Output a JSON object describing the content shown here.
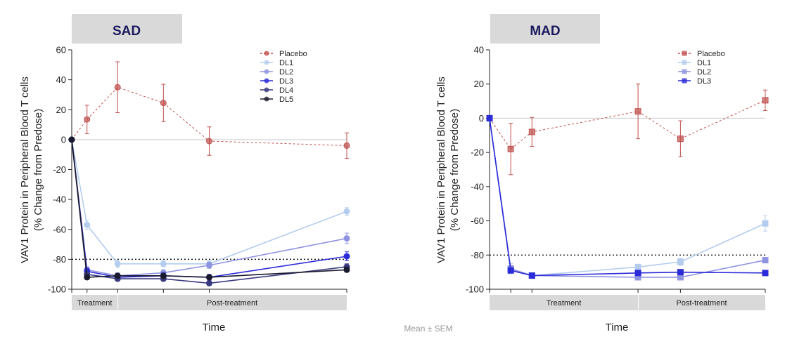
{
  "chart_data": [
    {
      "panel": "SAD",
      "type": "line",
      "xlabel": "Time",
      "ylabel": "VAV1 Protein in Peripheral Blood T cells",
      "ylabel2": "(% Change from Predose)",
      "ylim": [
        -100,
        60
      ],
      "yticks": [
        -100,
        -80,
        -60,
        -40,
        -20,
        0,
        20,
        40,
        60
      ],
      "x": [
        0,
        1,
        3,
        6,
        9,
        18
      ],
      "xlim": [
        0,
        18
      ],
      "reference_line": -80,
      "periods": [
        {
          "label": "Treatment",
          "from": 0,
          "to": 3
        },
        {
          "label": "Post-treatment",
          "from": 3,
          "to": 18
        }
      ],
      "marker": "circle",
      "legend": [
        "Placebo",
        "DL1",
        "DL2",
        "DL3",
        "DL4",
        "DL5"
      ],
      "series": [
        {
          "name": "Placebo",
          "color": "#c0504d",
          "dashed": true,
          "values": [
            0,
            13.5,
            35,
            24.5,
            -1,
            -4
          ],
          "err": [
            0,
            9.5,
            17,
            12.5,
            9.5,
            8.5
          ]
        },
        {
          "name": "DL1",
          "color": "#b4cdef",
          "dashed": false,
          "values": [
            0,
            -57,
            -83,
            -83,
            -83,
            -48
          ],
          "err": [
            0,
            3,
            2.5,
            2,
            2,
            2.5
          ]
        },
        {
          "name": "DL2",
          "color": "#8f94e0",
          "dashed": false,
          "values": [
            0,
            -87,
            -91,
            -89,
            -84,
            -66
          ],
          "err": [
            0,
            2,
            2,
            2,
            2,
            3.5
          ]
        },
        {
          "name": "DL3",
          "color": "#2b2bd8",
          "dashed": false,
          "values": [
            0,
            -88,
            -92,
            -91,
            -92,
            -78
          ],
          "err": [
            0,
            2,
            2,
            2,
            2,
            3
          ]
        },
        {
          "name": "DL4",
          "color": "#3a3a80",
          "dashed": false,
          "values": [
            0,
            -90,
            -93,
            -93,
            -96,
            -85
          ],
          "err": [
            0,
            1.5,
            1.5,
            1.5,
            1.5,
            2
          ]
        },
        {
          "name": "DL5",
          "color": "#1a1a2e",
          "dashed": false,
          "values": [
            0,
            -92,
            -91,
            -91,
            -92,
            -87
          ],
          "err": [
            0,
            1.5,
            1.5,
            1.5,
            1.5,
            1.5
          ]
        }
      ]
    },
    {
      "panel": "MAD",
      "type": "line",
      "xlabel": "Time",
      "ylabel": "VAV1 Protein in Peripheral Blood T cells",
      "ylabel2": "(% Change from Predose)",
      "ylim": [
        -100,
        40
      ],
      "yticks": [
        -100,
        -80,
        -60,
        -40,
        -20,
        0,
        20,
        40
      ],
      "x": [
        0,
        1,
        2,
        7,
        9,
        13
      ],
      "xlim": [
        0,
        13
      ],
      "reference_line": -80,
      "periods": [
        {
          "label": "Treatment",
          "from": 0,
          "to": 7
        },
        {
          "label": "Post-treatment",
          "from": 7,
          "to": 13
        }
      ],
      "marker": "square",
      "legend": [
        "Placebo",
        "DL1",
        "DL2",
        "DL3"
      ],
      "series": [
        {
          "name": "Placebo",
          "color": "#c0504d",
          "dashed": true,
          "values": [
            0,
            -18,
            -8,
            4,
            -12,
            10.5
          ],
          "err": [
            0,
            15,
            8.5,
            16,
            10.5,
            6
          ]
        },
        {
          "name": "DL1",
          "color": "#b4cdef",
          "dashed": false,
          "values": [
            0,
            -88,
            -92,
            -87,
            -84,
            -61.5
          ],
          "err": [
            0,
            3,
            1.5,
            1.5,
            2,
            4.5
          ]
        },
        {
          "name": "DL2",
          "color": "#8f94e0",
          "dashed": false,
          "values": [
            0,
            -88,
            -92,
            -93,
            -93,
            -83
          ],
          "err": [
            0,
            2,
            1.5,
            1.5,
            1.5,
            1.5
          ]
        },
        {
          "name": "DL3",
          "color": "#2b2bd8",
          "dashed": false,
          "values": [
            0,
            -89,
            -92,
            -90.5,
            -90,
            -90.5
          ],
          "err": [
            0,
            1.5,
            1.5,
            1.5,
            1.5,
            1.5
          ]
        }
      ]
    }
  ],
  "footer": {
    "note": "Mean ± SEM"
  }
}
